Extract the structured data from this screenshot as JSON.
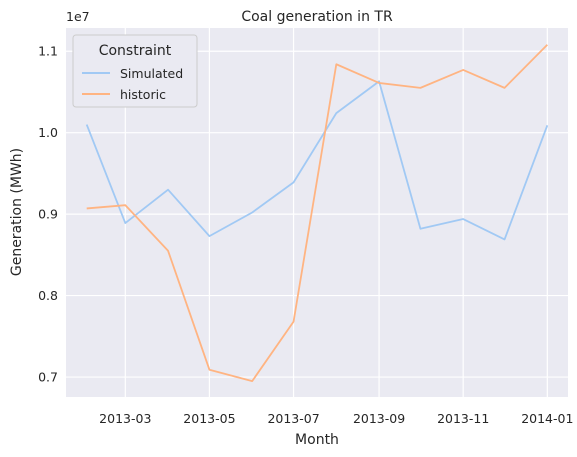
{
  "chart_data": {
    "type": "line",
    "title": "Coal generation in TR",
    "xlabel": "Month",
    "ylabel": "Generation (MWh)",
    "y_multiplier_label": "1e7",
    "x": [
      "2013-02-01",
      "2013-03-01",
      "2013-04-01",
      "2013-05-01",
      "2013-06-01",
      "2013-07-01",
      "2013-08-01",
      "2013-09-01",
      "2013-10-01",
      "2013-11-01",
      "2013-12-01",
      "2014-01-01"
    ],
    "series": [
      {
        "name": "Simulated",
        "color": "#a1c9f4",
        "values": [
          1.01,
          0.889,
          0.93,
          0.873,
          0.902,
          0.939,
          1.024,
          1.063,
          0.882,
          0.894,
          0.869,
          1.009
        ]
      },
      {
        "name": "historic",
        "color": "#ffb482",
        "values": [
          0.907,
          0.911,
          0.855,
          0.709,
          0.695,
          0.768,
          1.084,
          1.061,
          1.055,
          1.077,
          1.055,
          1.108
        ]
      }
    ],
    "x_ticks": [
      {
        "date": "2013-03-01",
        "label": "2013-03"
      },
      {
        "date": "2013-05-01",
        "label": "2013-05"
      },
      {
        "date": "2013-07-01",
        "label": "2013-07"
      },
      {
        "date": "2013-09-01",
        "label": "2013-09"
      },
      {
        "date": "2013-11-01",
        "label": "2013-11"
      },
      {
        "date": "2014-01-01",
        "label": "2014-01"
      }
    ],
    "y_ticks": [
      {
        "value": 0.7,
        "label": "0.7"
      },
      {
        "value": 0.8,
        "label": "0.8"
      },
      {
        "value": 0.9,
        "label": "0.9"
      },
      {
        "value": 1.0,
        "label": "1.0"
      },
      {
        "value": 1.1,
        "label": "1.1"
      }
    ],
    "xlim": [
      "2013-01-17",
      "2014-01-16"
    ],
    "ylim": [
      0.6755,
      1.1285
    ],
    "grid": true,
    "legend": {
      "title": "Constraint",
      "position": "top-left"
    },
    "background": "#eaeaf2",
    "grid_color": "#ffffff"
  }
}
